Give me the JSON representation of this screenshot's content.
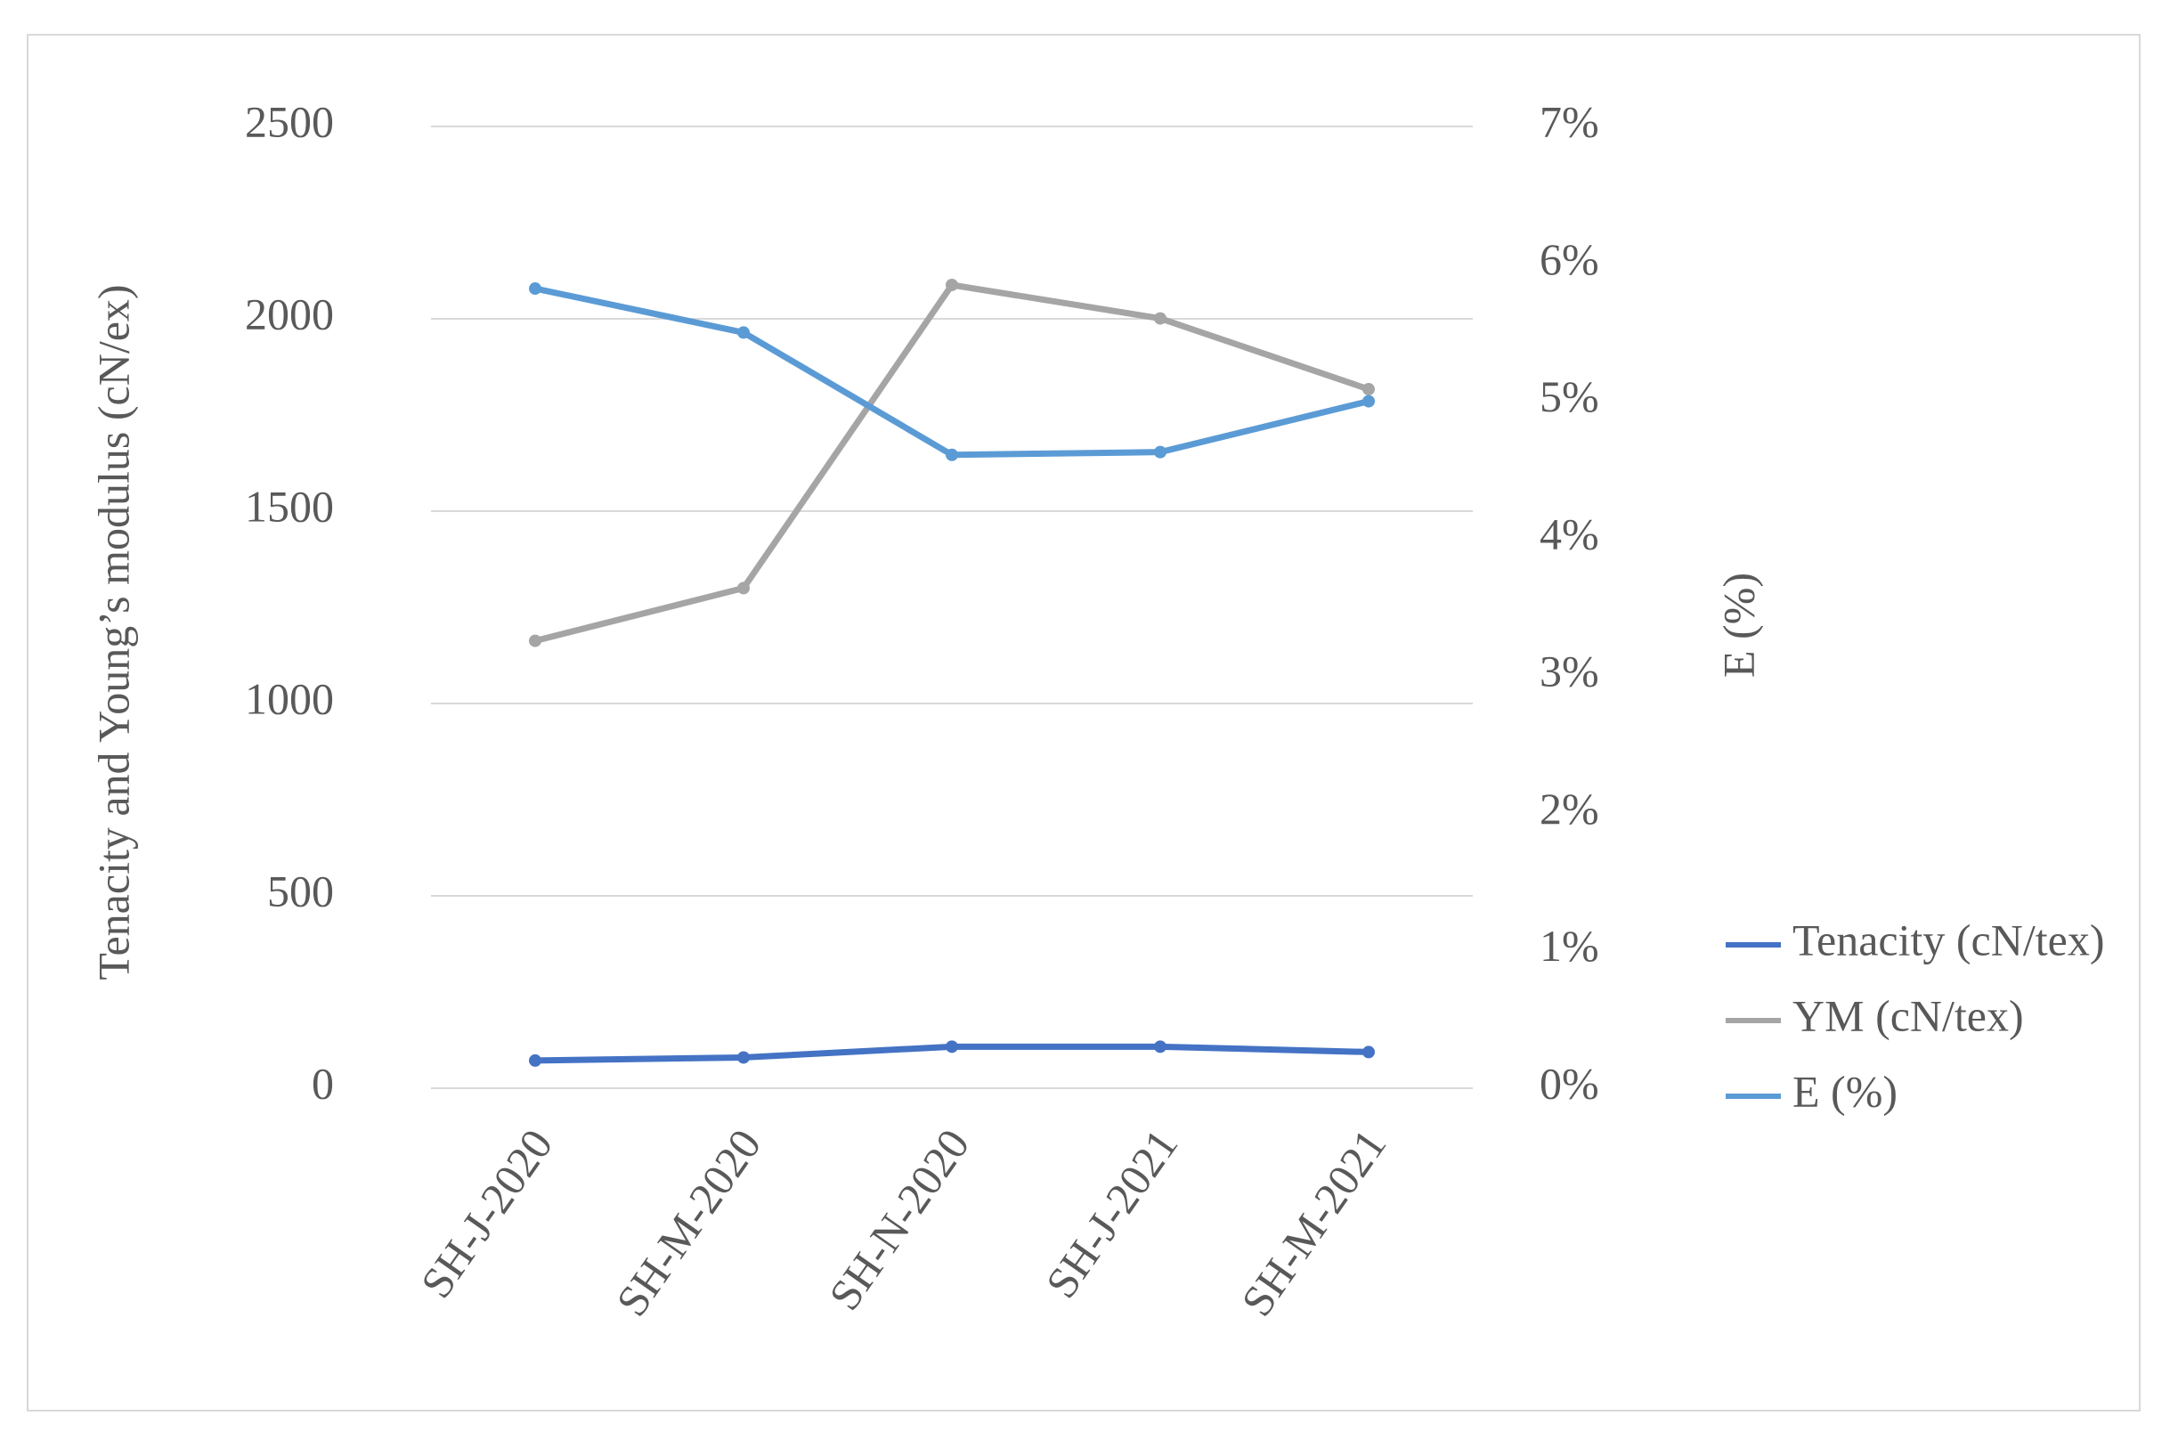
{
  "chart_data": {
    "type": "line",
    "y_label": "Tenacity and Young’s modulus (cN/ex)",
    "y2_label": "E (%)",
    "categories": [
      "SH-J-2020",
      "SH-M-2020",
      "SH-N-2020",
      "SH-J-2021",
      "SH-M-2021"
    ],
    "series": [
      {
        "name": "Tenacity (cN/tex)",
        "color": "#4472c4",
        "values": [
          72,
          80,
          108,
          108,
          94
        ]
      },
      {
        "name": "YM (cN/tex)",
        "color": "#a5a5a5",
        "values": [
          1163,
          1300,
          2088,
          2001,
          1817
        ]
      },
      {
        "name": "E (%)",
        "color": "#5b9bd5",
        "axis": "y2",
        "values": [
          5.82,
          5.5,
          4.61,
          4.63,
          5.0
        ]
      }
    ],
    "ylim": [
      0,
      2500
    ],
    "yticks": [
      0,
      500,
      1000,
      1500,
      2000,
      2500
    ],
    "y2lim": [
      0,
      7
    ],
    "y2ticks": [
      {
        "value": 0,
        "label": "0%"
      },
      {
        "value": 1,
        "label": "1%"
      },
      {
        "value": 2,
        "label": "2%"
      },
      {
        "value": 3,
        "label": "3%"
      },
      {
        "value": 4,
        "label": "4%"
      },
      {
        "value": 5,
        "label": "5%"
      },
      {
        "value": 6,
        "label": "6%"
      },
      {
        "value": 7,
        "label": "7%"
      }
    ],
    "grid": true,
    "legend": "right"
  }
}
